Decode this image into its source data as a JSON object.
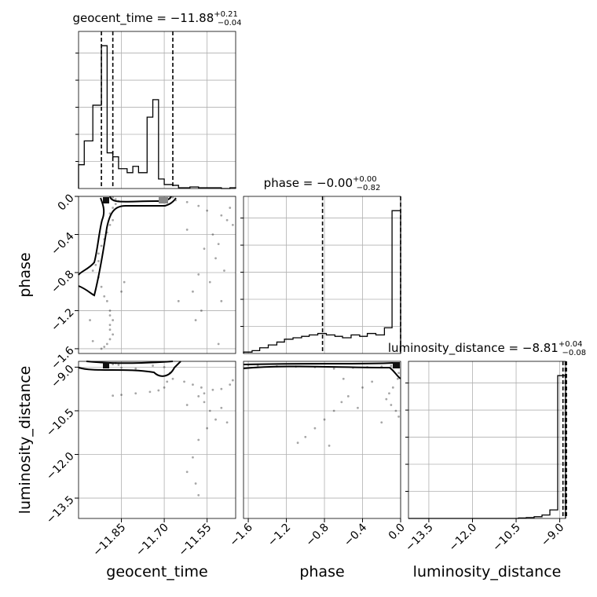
{
  "chart_data": {
    "type": "corner",
    "parameters": [
      "geocent_time",
      "phase",
      "luminosity_distance"
    ],
    "titles": [
      {
        "param": "geocent_time",
        "base": "geocent_time = −11.88",
        "sup": "+0.21",
        "sub": "−0.04"
      },
      {
        "param": "phase",
        "base": "phase = −0.00",
        "sup": "+0.00",
        "sub": "−0.82"
      },
      {
        "param": "luminosity_distance",
        "base": "luminosity_distance = −8.81",
        "sup": "+0.04",
        "sub": "−0.08"
      }
    ],
    "axes": {
      "geocent_time": {
        "range": [
          -12.0,
          -11.45
        ],
        "ticks": [
          -11.85,
          -11.7,
          -11.55
        ],
        "tick_labels": [
          "−11.85",
          "−11.70",
          "−11.55"
        ],
        "label": "geocent_time"
      },
      "phase": {
        "range": [
          -1.65,
          0.0
        ],
        "ticks": [
          -1.6,
          -1.2,
          -0.8,
          -0.4,
          0.0
        ],
        "tick_labels": [
          "−1.6",
          "−1.2",
          "−0.8",
          "−0.4",
          "0.0"
        ],
        "label": "phase"
      },
      "luminosity_distance": {
        "range": [
          -14.2,
          -8.8
        ],
        "ticks": [
          -13.5,
          -12.0,
          -10.5,
          -9.0
        ],
        "tick_labels": [
          "−13.5",
          "−12.0",
          "−10.5",
          "−9.0"
        ],
        "label": "luminosity_distance"
      }
    },
    "histograms": [
      {
        "param": "geocent_time",
        "bin_edges": [
          -12.0,
          -11.98,
          -11.95,
          -11.92,
          -11.9,
          -11.88,
          -11.86,
          -11.83,
          -11.81,
          -11.79,
          -11.76,
          -11.74,
          -11.72,
          -11.7,
          -11.67,
          -11.65,
          -11.63,
          -11.61,
          -11.58,
          -11.56,
          -11.54,
          -11.52,
          -11.5,
          -11.47,
          -11.45
        ],
        "counts": [
          30,
          60,
          105,
          180,
          45,
          40,
          25,
          20,
          28,
          20,
          90,
          112,
          12,
          5,
          4,
          1,
          1,
          2,
          1,
          1,
          1,
          1,
          0,
          1
        ],
        "quantiles": [
          -11.92,
          -11.88,
          -11.67
        ]
      },
      {
        "param": "phase",
        "bin_edges": [
          -1.65,
          -1.56,
          -1.48,
          -1.39,
          -1.3,
          -1.22,
          -1.13,
          -1.04,
          -0.96,
          -0.87,
          -0.78,
          -0.69,
          -0.61,
          -0.52,
          -0.43,
          -0.35,
          -0.26,
          -0.17,
          -0.09,
          0.0
        ],
        "counts": [
          1,
          2,
          4,
          6,
          8,
          10,
          11,
          12,
          13,
          14,
          13,
          12,
          11,
          13,
          12,
          14,
          13,
          18,
          100
        ],
        "quantiles": [
          -0.82,
          0.0
        ]
      },
      {
        "param": "luminosity_distance",
        "bin_edges": [
          -14.2,
          -13.93,
          -13.66,
          -13.39,
          -13.12,
          -12.85,
          -12.58,
          -12.31,
          -12.04,
          -11.77,
          -11.5,
          -11.23,
          -10.96,
          -10.69,
          -10.42,
          -10.15,
          -9.88,
          -9.61,
          -9.34,
          -9.07,
          -8.8
        ],
        "counts": [
          0,
          0,
          0,
          0,
          0,
          0,
          0,
          0,
          0,
          0,
          0,
          0,
          0,
          0,
          0.3,
          0.6,
          1.2,
          2.4,
          6,
          100
        ],
        "quantiles": [
          -8.89,
          -8.81,
          -8.77
        ]
      }
    ],
    "scatter": [
      {
        "x_param": "geocent_time",
        "y_param": "phase",
        "points": [
          [
            -11.87,
            -0.03
          ],
          [
            -11.86,
            -0.05
          ],
          [
            -11.88,
            -0.01
          ],
          [
            -11.87,
            -0.08
          ],
          [
            -11.88,
            -0.12
          ],
          [
            -11.89,
            -0.18
          ],
          [
            -11.88,
            -0.25
          ],
          [
            -11.89,
            -0.3
          ],
          [
            -11.9,
            -0.38
          ],
          [
            -11.91,
            -0.45
          ],
          [
            -11.92,
            -0.52
          ],
          [
            -11.93,
            -0.6
          ],
          [
            -11.93,
            -0.68
          ],
          [
            -11.94,
            -0.72
          ],
          [
            -11.95,
            -0.78
          ],
          [
            -11.93,
            -0.85
          ],
          [
            -11.92,
            -0.95
          ],
          [
            -11.91,
            -1.05
          ],
          [
            -11.9,
            -1.1
          ],
          [
            -11.89,
            -1.2
          ],
          [
            -11.89,
            -1.25
          ],
          [
            -11.88,
            -1.3
          ],
          [
            -11.89,
            -1.35
          ],
          [
            -11.89,
            -1.4
          ],
          [
            -11.88,
            -1.45
          ],
          [
            -11.89,
            -1.5
          ],
          [
            -11.9,
            -1.55
          ],
          [
            -11.91,
            -1.58
          ],
          [
            -11.92,
            -1.6
          ],
          [
            -11.95,
            -1.52
          ],
          [
            -11.96,
            -1.3
          ],
          [
            -11.85,
            -1.0
          ],
          [
            -11.84,
            -0.9
          ],
          [
            -11.68,
            -0.02
          ],
          [
            -11.66,
            -0.04
          ],
          [
            -11.67,
            -0.01
          ],
          [
            -11.62,
            -0.06
          ],
          [
            -11.58,
            -0.1
          ],
          [
            -11.55,
            -0.15
          ],
          [
            -11.5,
            -0.2
          ],
          [
            -11.48,
            -0.25
          ],
          [
            -11.47,
            -0.12
          ],
          [
            -11.53,
            -0.4
          ],
          [
            -11.56,
            -0.55
          ],
          [
            -11.52,
            -0.65
          ],
          [
            -11.58,
            -0.82
          ],
          [
            -11.6,
            -1.0
          ],
          [
            -11.57,
            -1.2
          ],
          [
            -11.59,
            -1.3
          ],
          [
            -11.5,
            -1.1
          ],
          [
            -11.49,
            -0.78
          ],
          [
            -11.51,
            -0.5
          ],
          [
            -11.46,
            -0.3
          ],
          [
            -11.62,
            -0.35
          ],
          [
            -11.54,
            -0.9
          ],
          [
            -11.65,
            -1.1
          ],
          [
            -11.51,
            -1.55
          ]
        ]
      },
      {
        "x_param": "geocent_time",
        "y_param": "luminosity_distance",
        "points": [
          [
            -11.87,
            -8.86
          ],
          [
            -11.88,
            -8.9
          ],
          [
            -11.86,
            -8.92
          ],
          [
            -11.9,
            -8.88
          ],
          [
            -11.85,
            -9.02
          ],
          [
            -11.8,
            -9.05
          ],
          [
            -11.74,
            -8.95
          ],
          [
            -11.7,
            -9.0
          ],
          [
            -11.68,
            -9.2
          ],
          [
            -11.69,
            -9.5
          ],
          [
            -11.7,
            -9.7
          ],
          [
            -11.72,
            -9.8
          ],
          [
            -11.75,
            -9.85
          ],
          [
            -11.8,
            -9.9
          ],
          [
            -11.85,
            -9.95
          ],
          [
            -11.88,
            -9.98
          ],
          [
            -11.67,
            -9.4
          ],
          [
            -11.63,
            -9.5
          ],
          [
            -11.6,
            -9.6
          ],
          [
            -11.57,
            -9.7
          ],
          [
            -11.53,
            -9.78
          ],
          [
            -11.5,
            -9.75
          ],
          [
            -11.47,
            -9.6
          ],
          [
            -11.46,
            -9.45
          ],
          [
            -11.58,
            -10.0
          ],
          [
            -11.56,
            -10.2
          ],
          [
            -11.54,
            -10.5
          ],
          [
            -11.52,
            -10.8
          ],
          [
            -11.55,
            -11.1
          ],
          [
            -11.58,
            -11.5
          ],
          [
            -11.6,
            -12.1
          ],
          [
            -11.62,
            -12.6
          ],
          [
            -11.59,
            -13.0
          ],
          [
            -11.58,
            -13.4
          ],
          [
            -11.5,
            -10.4
          ],
          [
            -11.48,
            -10.9
          ],
          [
            -11.56,
            -9.9
          ],
          [
            -11.62,
            -10.3
          ]
        ]
      },
      {
        "x_param": "phase",
        "y_param": "luminosity_distance",
        "points": [
          [
            -0.05,
            -8.9
          ],
          [
            -0.1,
            -8.95
          ],
          [
            -0.2,
            -8.98
          ],
          [
            -0.35,
            -9.0
          ],
          [
            -0.5,
            -9.02
          ],
          [
            -0.7,
            -9.05
          ],
          [
            -0.9,
            -9.0
          ],
          [
            -1.1,
            -8.98
          ],
          [
            -1.3,
            -8.97
          ],
          [
            -1.5,
            -8.95
          ],
          [
            -1.6,
            -8.92
          ],
          [
            -0.02,
            -9.2
          ],
          [
            -0.03,
            -9.4
          ],
          [
            -0.08,
            -9.7
          ],
          [
            -0.12,
            -9.9
          ],
          [
            -0.15,
            -10.1
          ],
          [
            -0.1,
            -10.3
          ],
          [
            -0.05,
            -10.5
          ],
          [
            -0.02,
            -10.7
          ],
          [
            -0.3,
            -9.5
          ],
          [
            -0.4,
            -9.7
          ],
          [
            -0.55,
            -10.0
          ],
          [
            -0.62,
            -10.2
          ],
          [
            -0.7,
            -10.5
          ],
          [
            -0.8,
            -10.8
          ],
          [
            -0.9,
            -11.1
          ],
          [
            -1.0,
            -11.4
          ],
          [
            -1.08,
            -11.6
          ],
          [
            -0.2,
            -10.9
          ],
          [
            -0.45,
            -10.4
          ],
          [
            -0.75,
            -11.7
          ],
          [
            -0.6,
            -9.4
          ]
        ]
      }
    ]
  }
}
